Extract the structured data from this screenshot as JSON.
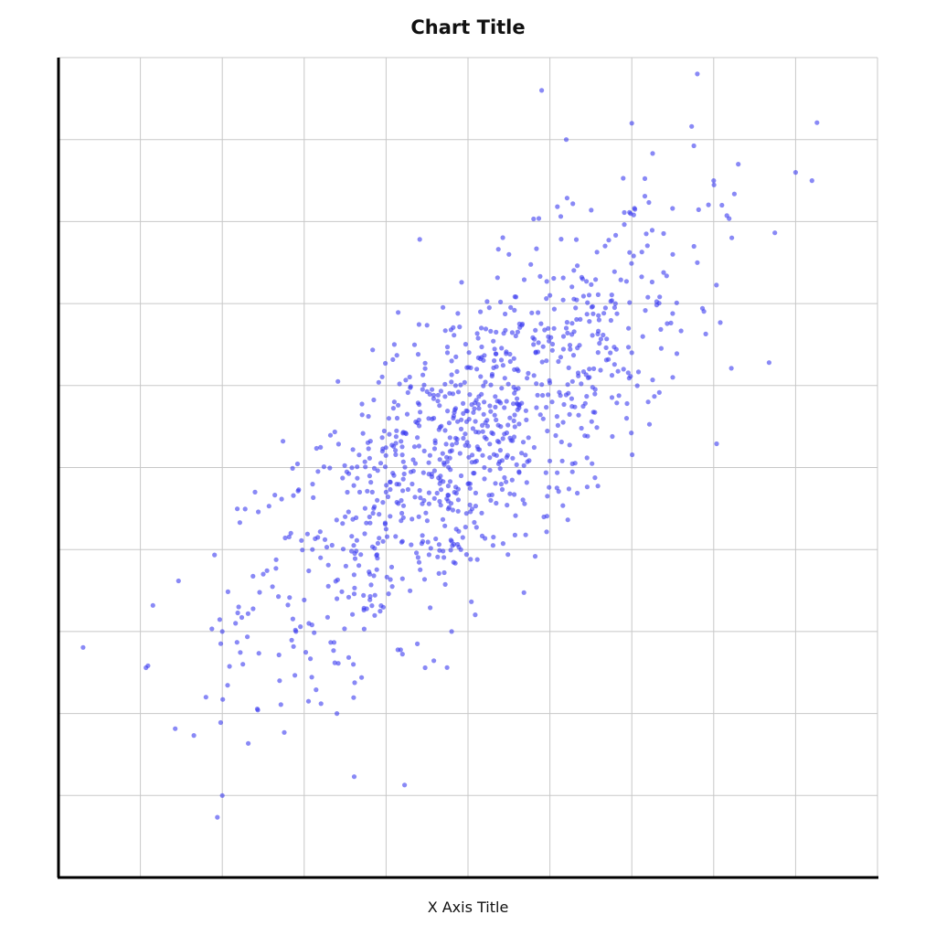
{
  "chart_data": {
    "type": "scatter",
    "title": "Chart Title",
    "xlabel": "X Axis Title",
    "ylabel": "",
    "xlim": [
      -5,
      5
    ],
    "ylim": [
      -5,
      5
    ],
    "grid": true,
    "legend": "none",
    "point_color": "#3b3bf0",
    "point_opacity": 0.6,
    "series": [
      {
        "points_summary": "Approximately 1000 points drawn from a bivariate normal distribution centred near (0, 0) with a strong positive correlation (about 0.75) and standard deviation about 1.4 on each axis; sampled points shown as the pseudo-random cloud are rendered below.",
        "x": [
          -3.0,
          -2.8,
          -2.5,
          -2.3,
          -2.1,
          -1.9,
          -1.8,
          -1.6,
          -1.4,
          -1.2,
          -1.0,
          -0.8,
          -0.6,
          -0.4,
          -0.2,
          0.0,
          0.2,
          0.4,
          0.6,
          0.8,
          1.0,
          1.2,
          1.4,
          1.6,
          1.8,
          2.0,
          2.2,
          2.5,
          2.8,
          3.0,
          3.3,
          4.0,
          4.2,
          2.8,
          3.1,
          2.0,
          1.2,
          0.9,
          -0.2,
          0.5,
          -0.9,
          -1.5,
          -2.6,
          -3.2,
          -1.6,
          1.9,
          2.5,
          -0.2,
          -0.9,
          -3.0
        ],
        "y": [
          -2.0,
          -1.7,
          -1.3,
          -2.6,
          -2.0,
          -1.0,
          -1.1,
          -3.0,
          -2.4,
          -1.3,
          -0.3,
          -0.9,
          -0.6,
          0.3,
          -0.9,
          -0.2,
          0.0,
          0.5,
          1.2,
          1.5,
          2.1,
          1.7,
          2.3,
          1.8,
          2.0,
          1.4,
          0.8,
          2.6,
          4.8,
          3.5,
          3.7,
          3.6,
          3.5,
          2.5,
          3.2,
          4.2,
          4.0,
          4.6,
          1.3,
          2.6,
          0.8,
          -0.6,
          -0.3,
          -2.8,
          -1.6,
          1.2,
          1.1,
          -2.0,
          1.5,
          -4.0
        ]
      }
    ]
  }
}
